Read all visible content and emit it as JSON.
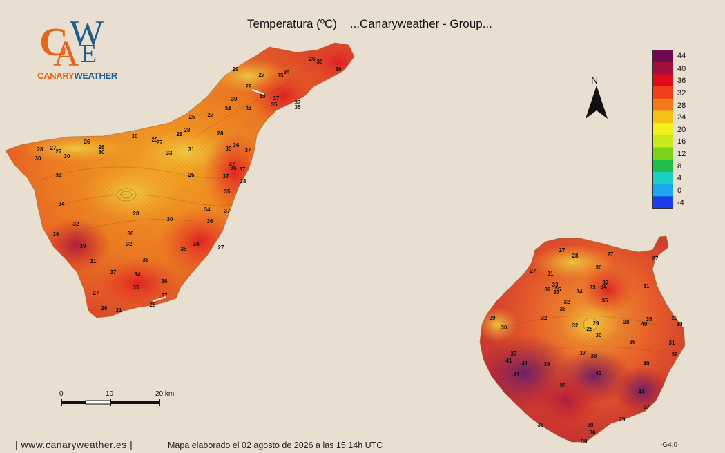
{
  "header": {
    "title": "Temperatura (ºC)    ...Canaryweather - Group..."
  },
  "logo": {
    "letters": "CAWE",
    "name_part1": "CANARY",
    "name_part2": "WEATHER",
    "colors": {
      "orange": "#e8641b",
      "blue": "#1f5d8c"
    }
  },
  "north_arrow": {
    "label": "N"
  },
  "legend": {
    "labels": [
      "44",
      "40",
      "36",
      "32",
      "28",
      "24",
      "20",
      "16",
      "12",
      "8",
      "4",
      "0",
      "-4"
    ],
    "colors": [
      "#6b0a4e",
      "#a0103a",
      "#e00a1a",
      "#f0401a",
      "#f27a1a",
      "#f5c21a",
      "#f2f21a",
      "#c8ea1a",
      "#7ad21a",
      "#1fbe4a",
      "#1ad0c0",
      "#1aa8f0",
      "#1a3ee8"
    ]
  },
  "scale_bar": {
    "labels": [
      "0",
      "10",
      "20 km"
    ]
  },
  "tenerife": {
    "stations": [
      {
        "t": "26"
      },
      {
        "t": "30"
      },
      {
        "t": "30"
      },
      {
        "t": "29"
      },
      {
        "t": "29"
      },
      {
        "t": "27"
      },
      {
        "t": "34"
      },
      {
        "t": "35"
      },
      {
        "t": "35"
      },
      {
        "t": "37"
      },
      {
        "t": "35"
      },
      {
        "t": "37"
      },
      {
        "t": "35"
      },
      {
        "t": "30"
      },
      {
        "t": "34"
      },
      {
        "t": "34"
      },
      {
        "t": "25"
      },
      {
        "t": "27"
      },
      {
        "t": "28"
      },
      {
        "t": "28"
      },
      {
        "t": "26"
      },
      {
        "t": "28"
      },
      {
        "t": "30"
      },
      {
        "t": "25"
      },
      {
        "t": "27"
      },
      {
        "t": "28"
      },
      {
        "t": "27"
      },
      {
        "t": "27"
      },
      {
        "t": "28"
      },
      {
        "t": "30"
      },
      {
        "t": "30"
      },
      {
        "t": "30"
      },
      {
        "t": "31"
      },
      {
        "t": "33"
      },
      {
        "t": "35"
      },
      {
        "t": "36"
      },
      {
        "t": "37"
      },
      {
        "t": "37"
      },
      {
        "t": "36"
      },
      {
        "t": "37"
      },
      {
        "t": "37"
      },
      {
        "t": "38"
      },
      {
        "t": "25"
      },
      {
        "t": "34"
      },
      {
        "t": "35"
      },
      {
        "t": "34"
      },
      {
        "t": "37"
      },
      {
        "t": "36"
      },
      {
        "t": "28"
      },
      {
        "t": "30"
      },
      {
        "t": "34"
      },
      {
        "t": "32"
      },
      {
        "t": "36"
      },
      {
        "t": "39"
      },
      {
        "t": "30"
      },
      {
        "t": "32"
      },
      {
        "t": "34"
      },
      {
        "t": "35"
      },
      {
        "t": "27"
      },
      {
        "t": "36"
      },
      {
        "t": "31"
      },
      {
        "t": "37"
      },
      {
        "t": "34"
      },
      {
        "t": "35"
      },
      {
        "t": "36"
      },
      {
        "t": "27"
      },
      {
        "t": "26"
      },
      {
        "t": "31"
      },
      {
        "t": "28"
      },
      {
        "t": "37"
      }
    ]
  },
  "gran_canaria": {
    "stations": [
      {
        "t": "27"
      },
      {
        "t": "28"
      },
      {
        "t": "27"
      },
      {
        "t": "27"
      },
      {
        "t": "30"
      },
      {
        "t": "27"
      },
      {
        "t": "31"
      },
      {
        "t": "33"
      },
      {
        "t": "32"
      },
      {
        "t": "35"
      },
      {
        "t": "37"
      },
      {
        "t": "34"
      },
      {
        "t": "33"
      },
      {
        "t": "37"
      },
      {
        "t": "34"
      },
      {
        "t": "31"
      },
      {
        "t": "32"
      },
      {
        "t": "36"
      },
      {
        "t": "35"
      },
      {
        "t": "32"
      },
      {
        "t": "29"
      },
      {
        "t": "30"
      },
      {
        "t": "32"
      },
      {
        "t": "29"
      },
      {
        "t": "28"
      },
      {
        "t": "30"
      },
      {
        "t": "38"
      },
      {
        "t": "40"
      },
      {
        "t": "35"
      },
      {
        "t": "29"
      },
      {
        "t": "30"
      },
      {
        "t": "36"
      },
      {
        "t": "31"
      },
      {
        "t": "32"
      },
      {
        "t": "37"
      },
      {
        "t": "41"
      },
      {
        "t": "41"
      },
      {
        "t": "37"
      },
      {
        "t": "38"
      },
      {
        "t": "39"
      },
      {
        "t": "41"
      },
      {
        "t": "42"
      },
      {
        "t": "39"
      },
      {
        "t": "40"
      },
      {
        "t": "44"
      },
      {
        "t": "37"
      },
      {
        "t": "29"
      },
      {
        "t": "30"
      },
      {
        "t": "36"
      },
      {
        "t": "36"
      },
      {
        "t": "30"
      }
    ]
  },
  "footer": {
    "site": "| www.canaryweather.es |",
    "date": "Mapa elaborado el 02 agosto de 2026 a las 15:14h UTC",
    "version": "-G4.0-"
  }
}
